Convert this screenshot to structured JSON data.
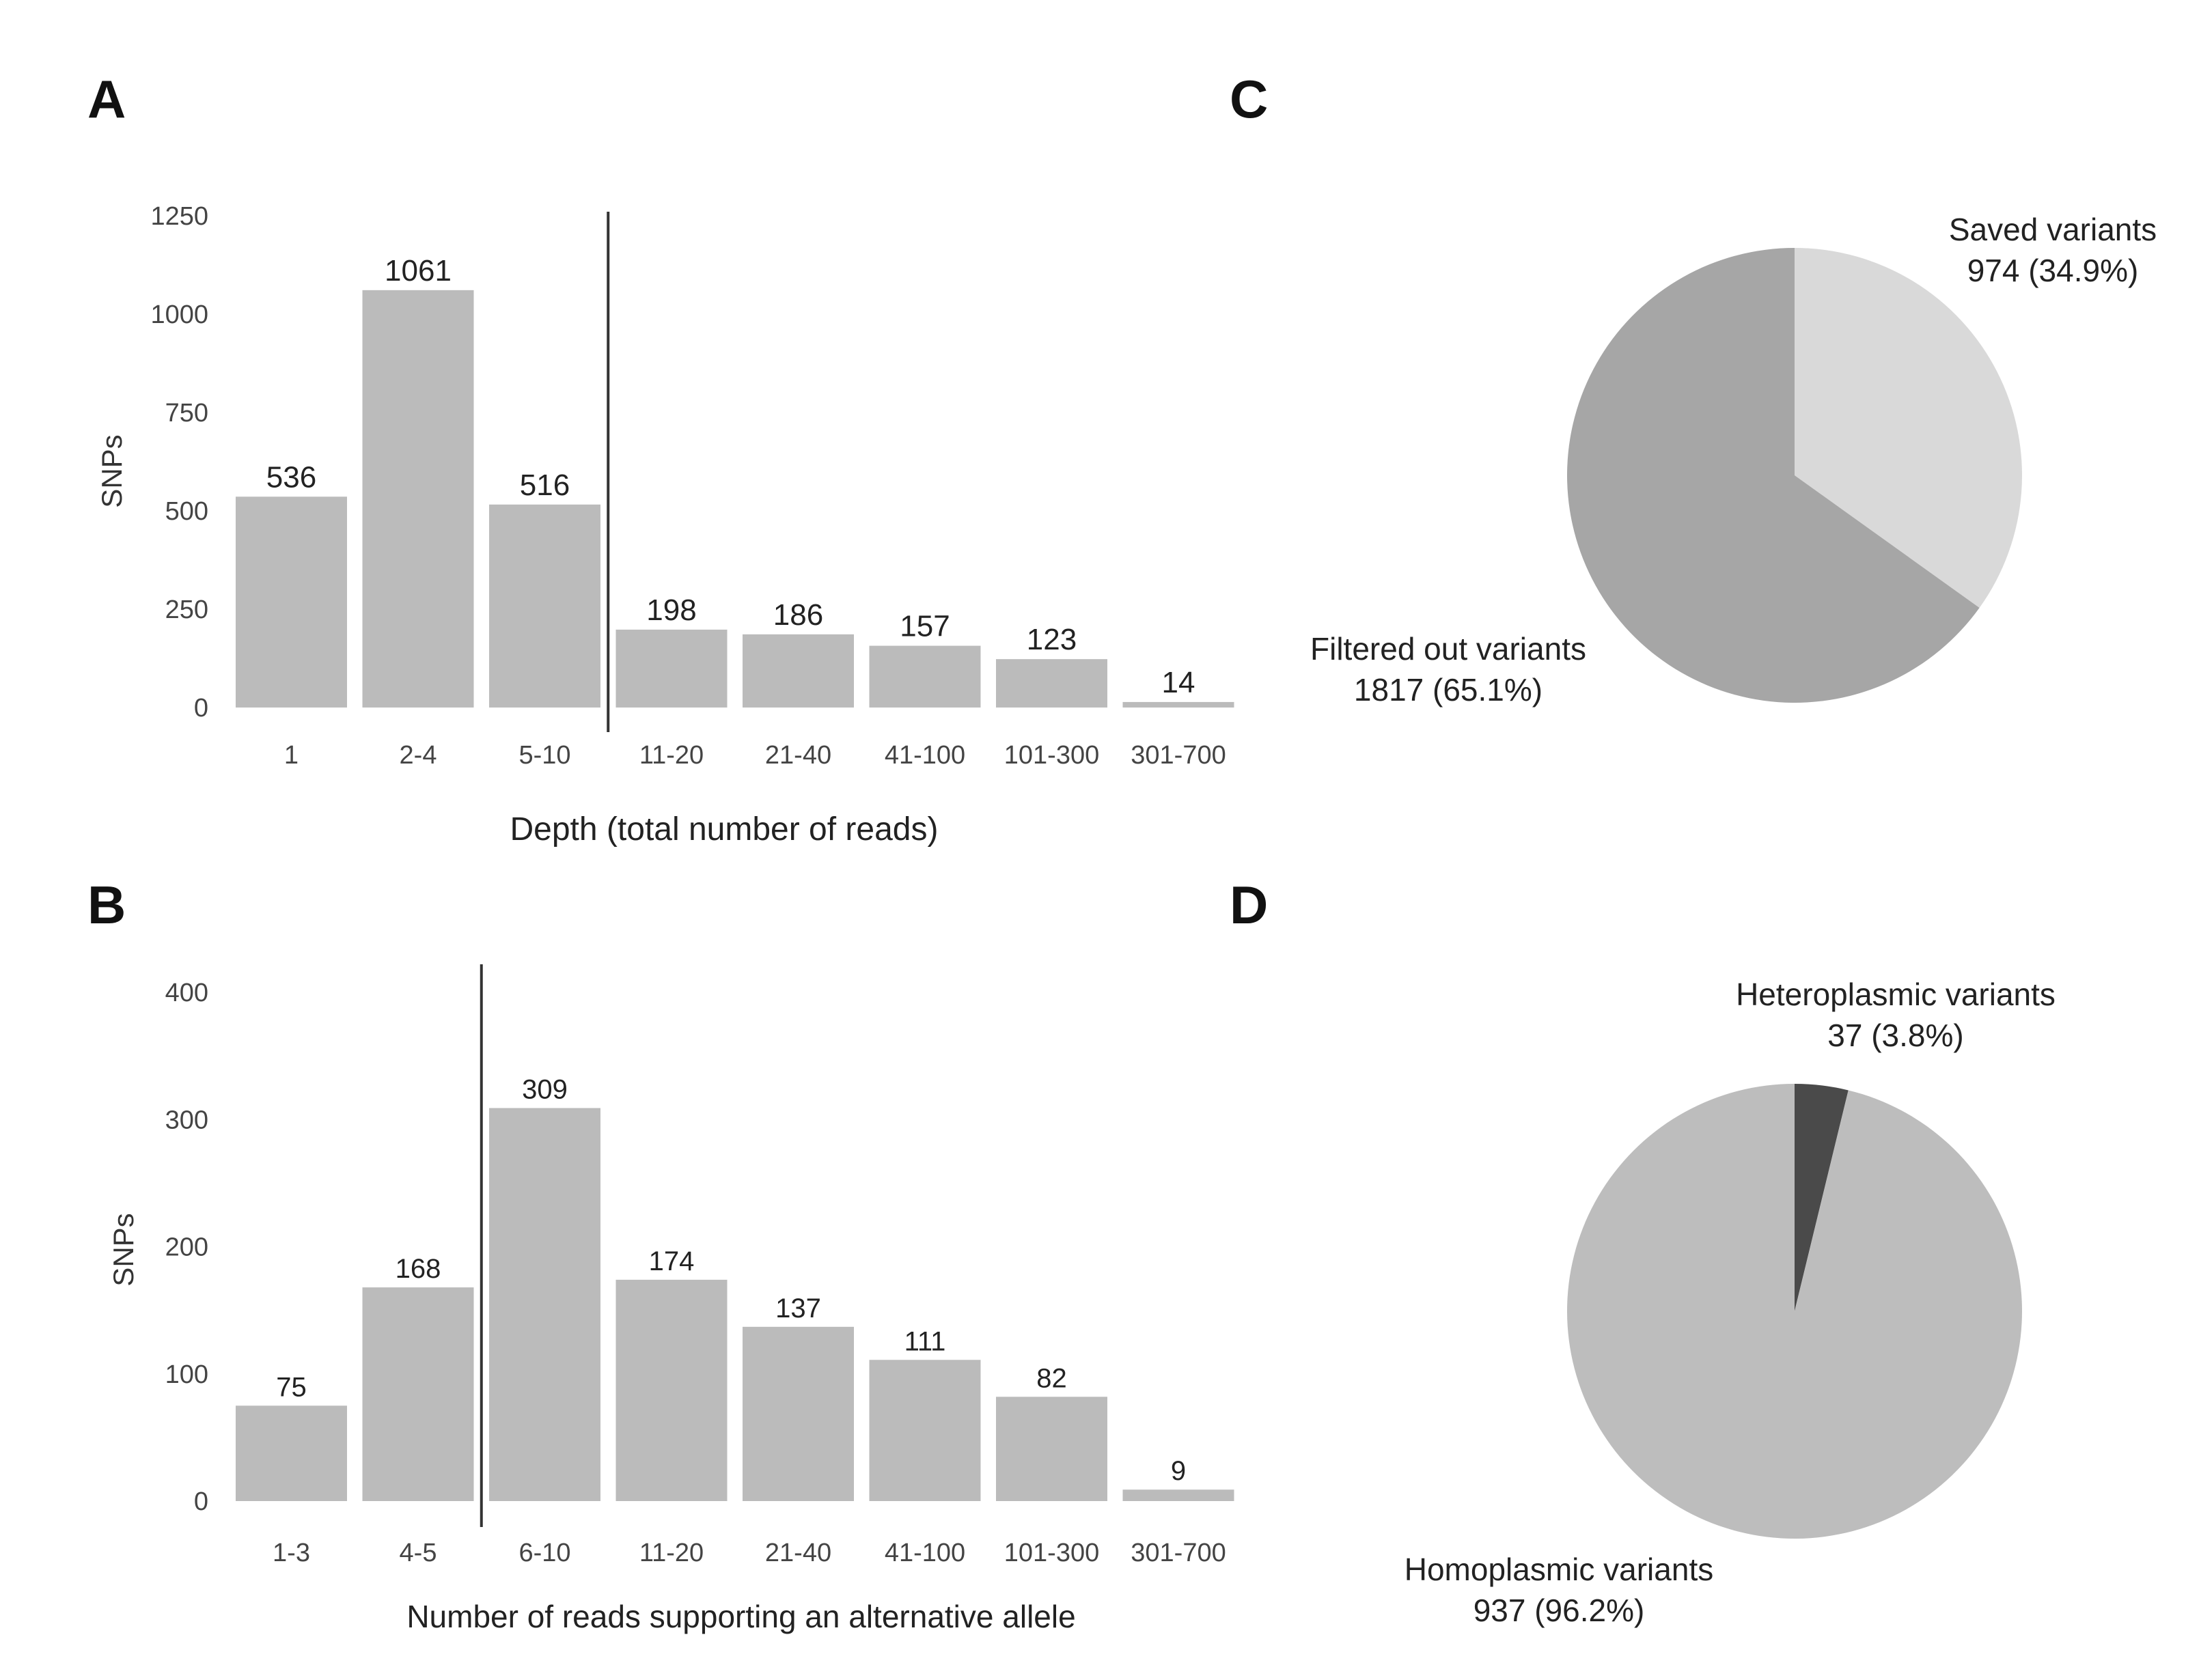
{
  "panels": {
    "a": "A",
    "b": "B",
    "c": "C",
    "d": "D"
  },
  "chart_data": [
    {
      "id": "A",
      "type": "bar",
      "categories": [
        "1",
        "2-4",
        "5-10",
        "11-20",
        "21-40",
        "41-100",
        "101-300",
        "301-700"
      ],
      "values": [
        536,
        1061,
        516,
        198,
        186,
        157,
        123,
        14
      ],
      "title": "",
      "xlabel": "Depth (total number of reads)",
      "ylabel": "SNPs",
      "ylim": [
        0,
        1250
      ],
      "yticks": [
        0,
        250,
        500,
        750,
        1000,
        1250
      ],
      "cutoff_after_category": 2,
      "grid": false,
      "bar_color": "#bbbbbb"
    },
    {
      "id": "B",
      "type": "bar",
      "categories": [
        "1-3",
        "4-5",
        "6-10",
        "11-20",
        "21-40",
        "41-100",
        "101-300",
        "301-700"
      ],
      "values": [
        75,
        168,
        309,
        174,
        137,
        111,
        82,
        9
      ],
      "title": "",
      "xlabel": "Number of reads supporting an alternative allele",
      "ylabel": "SNPs",
      "ylim": [
        0,
        400
      ],
      "yticks": [
        0,
        100,
        200,
        300,
        400
      ],
      "cutoff_after_category": 1,
      "grid": false,
      "bar_color": "#bbbbbb"
    },
    {
      "id": "C",
      "type": "pie",
      "slices": [
        {
          "label": "Saved variants",
          "value": 974,
          "pct": "34.9%",
          "text": "974 (34.9%)",
          "color": "#d9d9d9"
        },
        {
          "label": "Filtered out variants",
          "value": 1817,
          "pct": "65.1%",
          "text": "1817 (65.1%)",
          "color": "#a6a6a6"
        }
      ]
    },
    {
      "id": "D",
      "type": "pie",
      "slices": [
        {
          "label": "Heteroplasmic variants",
          "value": 37,
          "pct": "3.8%",
          "text": "37 (3.8%)",
          "color": "#4a4a4a"
        },
        {
          "label": "Homoplasmic variants",
          "value": 937,
          "pct": "96.2%",
          "text": "937 (96.2%)",
          "color": "#bdbdbd"
        }
      ]
    }
  ]
}
